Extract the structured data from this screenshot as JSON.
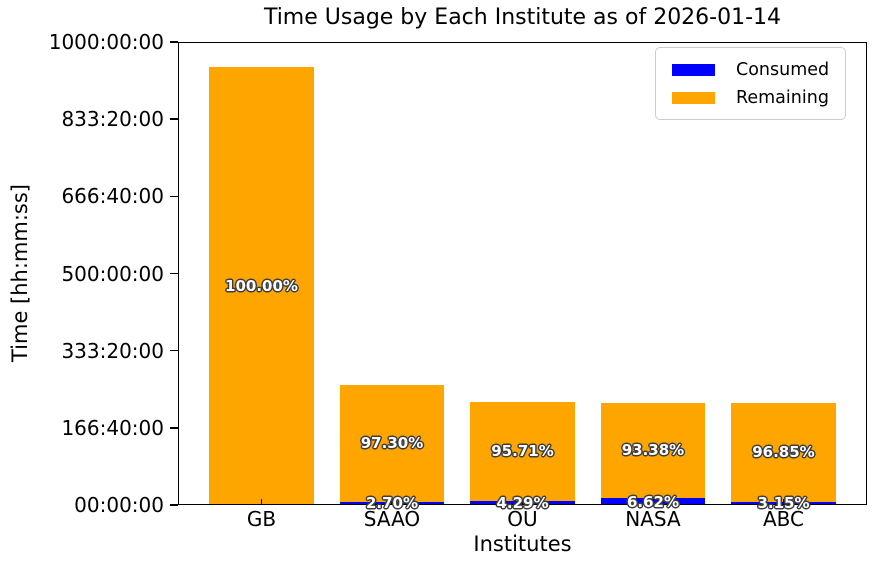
{
  "chart_data": {
    "type": "bar",
    "stacked": true,
    "title": "Time Usage by Each Institute as of 2026-01-14",
    "xlabel": "Institutes",
    "ylabel": "Time [hh:mm:ss]",
    "categories": [
      "GB",
      "SAAO",
      "OU",
      "NASA",
      "ABC"
    ],
    "totals_hours": [
      946.67,
      259.2,
      223.1,
      221.0,
      221.0
    ],
    "series": [
      {
        "name": "Consumed",
        "color": "#0000ff",
        "percentages": [
          0.0,
          2.7,
          4.29,
          6.62,
          3.15
        ],
        "labels": [
          "",
          "2.70%",
          "4.29%",
          "6.62%",
          "3.15%"
        ]
      },
      {
        "name": "Remaining",
        "color": "#ffa500",
        "percentages": [
          100.0,
          97.3,
          95.71,
          93.38,
          96.85
        ],
        "labels": [
          "100.00%",
          "97.30%",
          "95.71%",
          "93.38%",
          "96.85%"
        ]
      }
    ],
    "ylim_hours": [
      0,
      1000
    ],
    "y_ticks": [
      {
        "hours": 0,
        "label": "00:00:00"
      },
      {
        "hours": 166.6667,
        "label": "166:40:00"
      },
      {
        "hours": 333.3333,
        "label": "333:20:00"
      },
      {
        "hours": 500,
        "label": "500:00:00"
      },
      {
        "hours": 666.6667,
        "label": "666:40:00"
      },
      {
        "hours": 833.3333,
        "label": "833:20:00"
      },
      {
        "hours": 1000,
        "label": "1000:00:00"
      }
    ],
    "legend": {
      "position": "upper-right",
      "entries": [
        {
          "label": "Consumed",
          "color": "#0000ff"
        },
        {
          "label": "Remaining",
          "color": "#ffa500"
        }
      ]
    },
    "grid": false,
    "text_colors": {
      "bar_label": "#ffffff",
      "bar_label_outline": "#3d3d3d",
      "axis_text": "#000000"
    }
  }
}
